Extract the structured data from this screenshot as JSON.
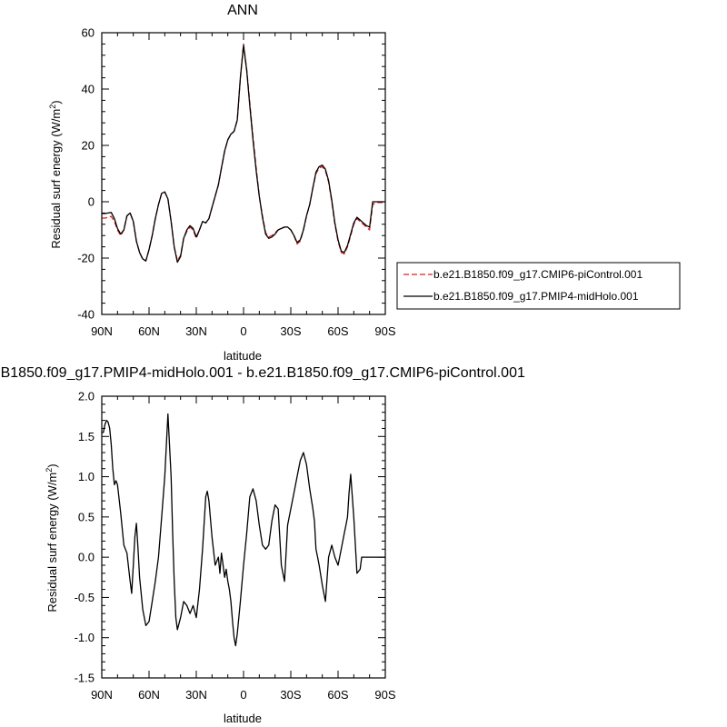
{
  "chart_data": [
    {
      "type": "line",
      "title": "ANN",
      "xlabel": "latitude",
      "ylabel_main": "Residual surf energy (W/m",
      "ylabel_sup": "2",
      "ylabel_close": ")",
      "x_range": [
        90,
        -90
      ],
      "ylim": [
        -40,
        60
      ],
      "x_ticks": [
        {
          "value": 90,
          "label": "90N"
        },
        {
          "value": 60,
          "label": "60N"
        },
        {
          "value": 30,
          "label": "30N"
        },
        {
          "value": 0,
          "label": "0"
        },
        {
          "value": -30,
          "label": "30S"
        },
        {
          "value": -60,
          "label": "60S"
        },
        {
          "value": -90,
          "label": "90S"
        }
      ],
      "y_ticks": [
        {
          "value": -40,
          "label": "-40"
        },
        {
          "value": -20,
          "label": "-20"
        },
        {
          "value": 0,
          "label": "0"
        },
        {
          "value": 20,
          "label": "20"
        },
        {
          "value": 40,
          "label": "40"
        },
        {
          "value": 60,
          "label": "60"
        }
      ],
      "legend": {
        "placement": "right-middle"
      },
      "series": [
        {
          "name": "b.e21.B1850.f09_g17.CMIP6-piControl.001",
          "color": "#e31a1c",
          "style": "dashed",
          "x": [
            90,
            88,
            86,
            84,
            82,
            80,
            78,
            76,
            74,
            72,
            70,
            68,
            66,
            64,
            62,
            60,
            58,
            56,
            54,
            52,
            50,
            48,
            46,
            44,
            42,
            40,
            38,
            36,
            34,
            32,
            30,
            28,
            26,
            24,
            22,
            20,
            18,
            16,
            14,
            12,
            10,
            8,
            6,
            4,
            2,
            0,
            -2,
            -4,
            -6,
            -8,
            -10,
            -12,
            -14,
            -16,
            -18,
            -20,
            -22,
            -24,
            -26,
            -28,
            -30,
            -32,
            -34,
            -36,
            -38,
            -40,
            -42,
            -44,
            -46,
            -48,
            -50,
            -52,
            -54,
            -56,
            -58,
            -60,
            -62,
            -64,
            -66,
            -68,
            -70,
            -72,
            -74,
            -76,
            -78,
            -80,
            -82,
            -84,
            -86,
            -88,
            -90
          ],
          "y": [
            -5.8,
            -5.8,
            -5.5,
            -5.2,
            -7,
            -10,
            -12,
            -10,
            -5,
            -4,
            -7,
            -14,
            -18,
            -20.5,
            -21,
            -17,
            -12,
            -6,
            -1,
            3,
            3.5,
            1,
            -7,
            -16,
            -21,
            -19,
            -13,
            -10.5,
            -9,
            -10,
            -13,
            -10,
            -7,
            -7.5,
            -6,
            -2,
            2,
            6,
            12,
            18,
            22,
            24,
            25,
            29,
            44,
            56,
            47,
            35,
            23,
            12,
            2,
            -5,
            -11,
            -12.5,
            -12,
            -11,
            -10,
            -9.5,
            -9,
            -9,
            -10,
            -12,
            -15,
            -14,
            -10,
            -5,
            -1,
            5,
            10,
            12,
            12.5,
            11,
            7,
            0,
            -8,
            -14,
            -18,
            -18.5,
            -16,
            -12,
            -8,
            -6,
            -7,
            -8,
            -9,
            -10,
            -1,
            -0.3,
            -0.3,
            -0.3,
            -0.3
          ]
        },
        {
          "name": "b.e21.B1850.f09_g17.PMIP4-midHolo.001",
          "color": "#000000",
          "style": "solid",
          "x": [
            90,
            88,
            86,
            84,
            82,
            80,
            78,
            76,
            74,
            72,
            70,
            68,
            66,
            64,
            62,
            60,
            58,
            56,
            54,
            52,
            50,
            48,
            46,
            44,
            42,
            40,
            38,
            36,
            34,
            32,
            30,
            28,
            26,
            24,
            22,
            20,
            18,
            16,
            14,
            12,
            10,
            8,
            6,
            4,
            2,
            0,
            -2,
            -4,
            -6,
            -8,
            -10,
            -12,
            -14,
            -16,
            -18,
            -20,
            -22,
            -24,
            -26,
            -28,
            -30,
            -32,
            -34,
            -36,
            -38,
            -40,
            -42,
            -44,
            -46,
            -48,
            -50,
            -52,
            -54,
            -56,
            -58,
            -60,
            -62,
            -64,
            -66,
            -68,
            -70,
            -72,
            -74,
            -76,
            -78,
            -80,
            -82,
            -84,
            -86,
            -88,
            -90
          ],
          "y": [
            -4.2,
            -4.2,
            -4,
            -3.8,
            -6,
            -9.5,
            -11.5,
            -10,
            -5,
            -4,
            -7,
            -14,
            -18,
            -20.3,
            -21,
            -17,
            -12,
            -6,
            -1,
            3,
            3.5,
            1,
            -7,
            -16,
            -21.5,
            -19.5,
            -13,
            -10,
            -8.5,
            -9.5,
            -12.5,
            -10,
            -7,
            -7.5,
            -6,
            -2,
            2,
            6,
            12,
            18,
            22,
            24,
            25,
            29,
            44,
            55.5,
            46.5,
            34,
            22,
            11,
            2,
            -5.5,
            -11.5,
            -13,
            -12.5,
            -11.5,
            -10,
            -9.5,
            -9,
            -9,
            -10,
            -12,
            -14.5,
            -13.5,
            -10,
            -5,
            -1,
            5,
            10.5,
            12.5,
            13,
            11.5,
            7.5,
            0.5,
            -7.5,
            -13.5,
            -17.5,
            -18,
            -15.5,
            -11.5,
            -7.5,
            -5.5,
            -6.5,
            -7.5,
            -8.5,
            -9,
            0,
            0,
            0,
            0,
            0
          ]
        }
      ]
    },
    {
      "type": "line",
      "title": "b.e21.B1850.f09_g17.PMIP4-midHolo.001 - b.e21.B1850.f09_g17.CMIP6-piControl.001",
      "xlabel": "latitude",
      "ylabel_main": "Residual surf energy (W/m",
      "ylabel_sup": "2",
      "ylabel_close": ")",
      "x_range": [
        90,
        -90
      ],
      "ylim": [
        -1.5,
        2.0
      ],
      "x_ticks": [
        {
          "value": 90,
          "label": "90N"
        },
        {
          "value": 60,
          "label": "60N"
        },
        {
          "value": 30,
          "label": "30N"
        },
        {
          "value": 0,
          "label": "0"
        },
        {
          "value": -30,
          "label": "30S"
        },
        {
          "value": -60,
          "label": "60S"
        },
        {
          "value": -90,
          "label": "90S"
        }
      ],
      "y_ticks": [
        {
          "value": -1.5,
          "label": "-1.5"
        },
        {
          "value": -1.0,
          "label": "-1.0"
        },
        {
          "value": -0.5,
          "label": "-0.5"
        },
        {
          "value": 0.0,
          "label": "0.0"
        },
        {
          "value": 0.5,
          "label": "0.5"
        },
        {
          "value": 1.0,
          "label": "1.0"
        },
        {
          "value": 1.5,
          "label": "1.5"
        },
        {
          "value": 2.0,
          "label": "2.0"
        }
      ],
      "series": [
        {
          "color": "#000000",
          "style": "solid",
          "x": [
            90,
            89,
            88,
            87,
            86,
            85,
            84,
            83,
            82,
            81,
            80,
            78,
            76,
            74,
            72,
            71,
            70,
            69,
            68,
            67,
            66,
            64,
            62,
            60,
            58,
            56,
            54,
            52,
            50,
            48,
            46,
            45,
            44,
            43,
            42,
            40,
            38,
            36,
            34,
            32,
            30,
            28,
            26,
            24,
            23,
            22,
            20,
            18,
            16,
            15,
            14,
            13,
            12,
            11,
            10,
            9,
            8,
            7,
            6,
            5,
            4,
            2,
            0,
            -2,
            -4,
            -6,
            -8,
            -10,
            -12,
            -14,
            -16,
            -18,
            -20,
            -22,
            -24,
            -26,
            -28,
            -30,
            -32,
            -34,
            -36,
            -38,
            -40,
            -42,
            -44,
            -45,
            -46,
            -47,
            -48,
            -50,
            -52,
            -54,
            -56,
            -58,
            -60,
            -62,
            -64,
            -65,
            -66,
            -67,
            -68,
            -70,
            -72,
            -74,
            -75,
            -76,
            -77,
            -78,
            -79,
            -80,
            -82,
            -84,
            -86,
            -88,
            -90
          ],
          "y": [
            1.55,
            1.55,
            1.65,
            1.7,
            1.68,
            1.6,
            1.4,
            1.1,
            0.9,
            0.95,
            0.9,
            0.55,
            0.15,
            0.05,
            -0.3,
            -0.45,
            -0.1,
            0.25,
            0.42,
            0.1,
            -0.25,
            -0.65,
            -0.85,
            -0.8,
            -0.55,
            -0.3,
            0.0,
            0.5,
            1.0,
            1.78,
            1.0,
            0.3,
            -0.3,
            -0.75,
            -0.9,
            -0.75,
            -0.55,
            -0.6,
            -0.7,
            -0.6,
            -0.75,
            -0.4,
            0.1,
            0.75,
            0.82,
            0.7,
            0.25,
            -0.1,
            0.0,
            -0.2,
            0.05,
            -0.1,
            -0.25,
            -0.15,
            -0.3,
            -0.4,
            -0.55,
            -0.8,
            -1.0,
            -1.1,
            -0.95,
            -0.55,
            -0.1,
            0.3,
            0.75,
            0.85,
            0.7,
            0.4,
            0.15,
            0.1,
            0.15,
            0.45,
            0.65,
            0.6,
            -0.1,
            -0.3,
            0.4,
            0.6,
            0.8,
            1.0,
            1.2,
            1.3,
            1.15,
            0.85,
            0.6,
            0.45,
            0.1,
            0.0,
            -0.1,
            -0.35,
            -0.55,
            0.0,
            0.15,
            0.0,
            -0.1,
            0.1,
            0.3,
            0.4,
            0.5,
            0.8,
            1.03,
            0.5,
            -0.2,
            -0.15,
            0.0,
            0.0,
            0.0,
            0.0,
            0.0,
            0.0,
            0.0,
            0.0,
            0.0,
            0.0,
            0.0
          ]
        }
      ]
    }
  ]
}
